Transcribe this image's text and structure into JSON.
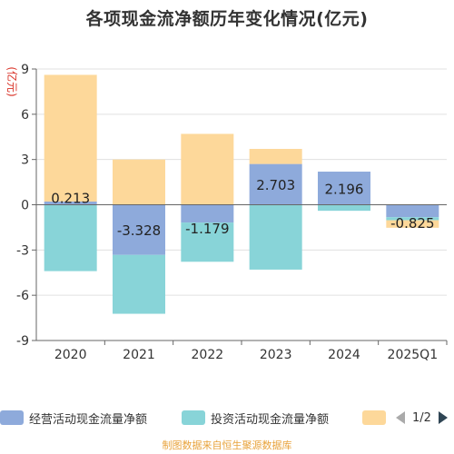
{
  "title": "各项现金流净额历年变化情况(亿元)",
  "source": "制图数据来自恒生聚源数据库",
  "legend": {
    "items": [
      {
        "label": "经营活动现金流量净额",
        "color": "#8eaadb"
      },
      {
        "label": "投资活动现金流量净额",
        "color": "#88d4d8"
      },
      {
        "label": "",
        "color": "#fdd89a"
      }
    ],
    "page": "1/2"
  },
  "chart_data": {
    "type": "bar",
    "stacked": true,
    "ylabel": "(亿元)",
    "ylim": [
      -9,
      9
    ],
    "yticks": [
      -9,
      -6,
      -3,
      0,
      3,
      6,
      9
    ],
    "categories": [
      "2020",
      "2021",
      "2022",
      "2023",
      "2024",
      "2025Q1"
    ],
    "series": [
      {
        "name": "经营活动现金流量净额",
        "color": "#8eaadb",
        "values": [
          0.213,
          -3.328,
          -1.179,
          2.703,
          2.196,
          -0.825
        ],
        "labels": [
          "0.213",
          "-3.328",
          "-1.179",
          "2.703",
          "2.196",
          "-0.825"
        ]
      },
      {
        "name": "投资活动现金流量净额",
        "color": "#88d4d8",
        "values": [
          -4.4,
          -3.9,
          -2.6,
          -4.3,
          -0.4,
          -0.2
        ]
      },
      {
        "color": "#fdd89a",
        "values": [
          8.4,
          3.0,
          4.7,
          1.0,
          0.0,
          -0.5
        ]
      }
    ],
    "grid": true
  }
}
